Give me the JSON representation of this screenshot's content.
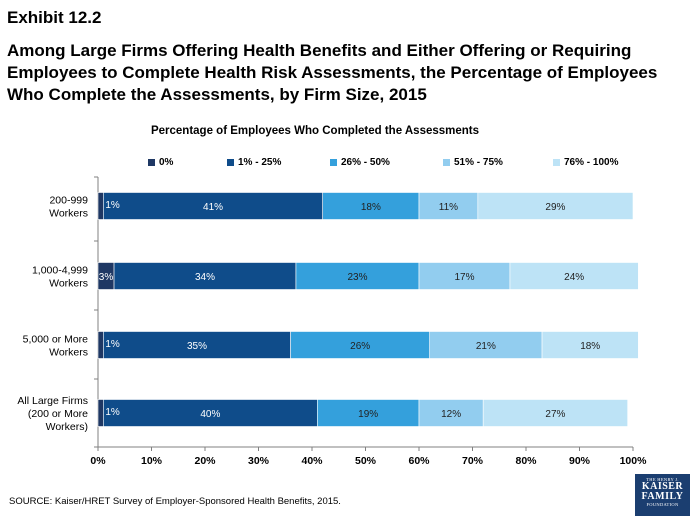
{
  "exhibit": "Exhibit 12.2",
  "title": "Among Large Firms Offering Health Benefits and Either Offering or Requiring Employees to Complete Health Risk Assessments, the Percentage of Employees Who Complete the Assessments, by Firm Size, 2015",
  "source": "SOURCE: Kaiser/HRET Survey of Employer-Sponsored Health Benefits, 2015.",
  "logo": {
    "line1": "THE HENRY J.",
    "line2": "KAISER",
    "line3": "FAMILY",
    "line4": "FOUNDATION"
  },
  "chart_data": {
    "type": "bar",
    "orientation": "horizontal",
    "stacked": true,
    "title": "Percentage of Employees Who Completed the Assessments",
    "categories": [
      "200-999 Workers",
      "1,000-4,999 Workers",
      "5,000 or More Workers",
      "All Large Firms (200 or More Workers)"
    ],
    "category_lines": [
      [
        "200-999",
        "Workers"
      ],
      [
        "1,000-4,999",
        "Workers"
      ],
      [
        "5,000 or More",
        "Workers"
      ],
      [
        "All Large Firms",
        "(200 or More",
        "Workers)"
      ]
    ],
    "series": [
      {
        "name": "0%",
        "color": "#1f3864",
        "values": [
          1,
          3,
          1,
          1
        ],
        "labels": [
          "",
          "3%",
          "",
          ""
        ]
      },
      {
        "name": "1% - 25%",
        "color": "#0f4c8a",
        "values": [
          41,
          34,
          35,
          40
        ],
        "labels": [
          "41%",
          "34%",
          "35%",
          "40%"
        ]
      },
      {
        "name": "26% - 50%",
        "color": "#34a0dc",
        "values": [
          18,
          23,
          26,
          19
        ],
        "labels": [
          "18%",
          "23%",
          "26%",
          "19%"
        ]
      },
      {
        "name": "51% - 75%",
        "color": "#92cdef",
        "values": [
          11,
          17,
          21,
          12
        ],
        "labels": [
          "11%",
          "17%",
          "21%",
          "12%"
        ]
      },
      {
        "name": "76% - 100%",
        "color": "#bde3f6",
        "values": [
          29,
          24,
          18,
          27
        ],
        "labels": [
          "29%",
          "24%",
          "18%",
          "27%"
        ]
      }
    ],
    "outside_labels": [
      "1%",
      "",
      "1%",
      "1%"
    ],
    "xlim": [
      0,
      100
    ],
    "xticks": [
      "0%",
      "10%",
      "20%",
      "30%",
      "40%",
      "50%",
      "60%",
      "70%",
      "80%",
      "90%",
      "100%"
    ],
    "legend_position": "top",
    "grid": false
  }
}
